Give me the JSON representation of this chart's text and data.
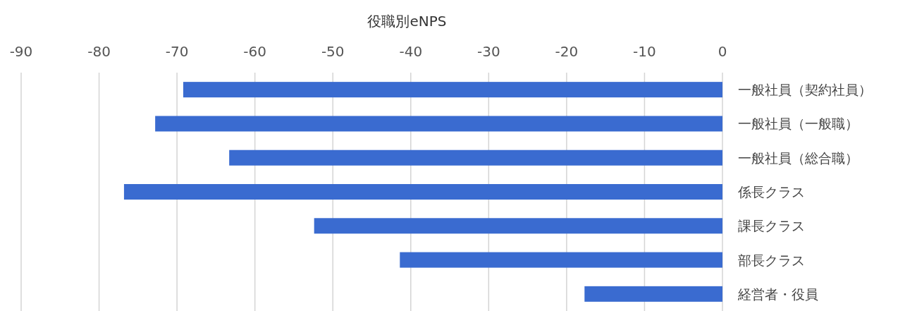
{
  "chart_data": {
    "type": "bar",
    "orientation": "horizontal",
    "title": "役職別eNPS",
    "categories": [
      "一般社員（契約社員）",
      "一般社員（一般職）",
      "一般社員（総合職）",
      "係長クラス",
      "課長クラス",
      "部長クラス",
      "経営者・役員"
    ],
    "values": [
      -69.2,
      -72.8,
      -63.3,
      -76.8,
      -52.4,
      -41.4,
      -17.7
    ],
    "color": "#3a6bd0",
    "xlim": [
      -90,
      0
    ],
    "xticks": [
      -90,
      -80,
      -70,
      -60,
      -50,
      -40,
      -30,
      -20,
      -10,
      0
    ],
    "grid": "x"
  }
}
